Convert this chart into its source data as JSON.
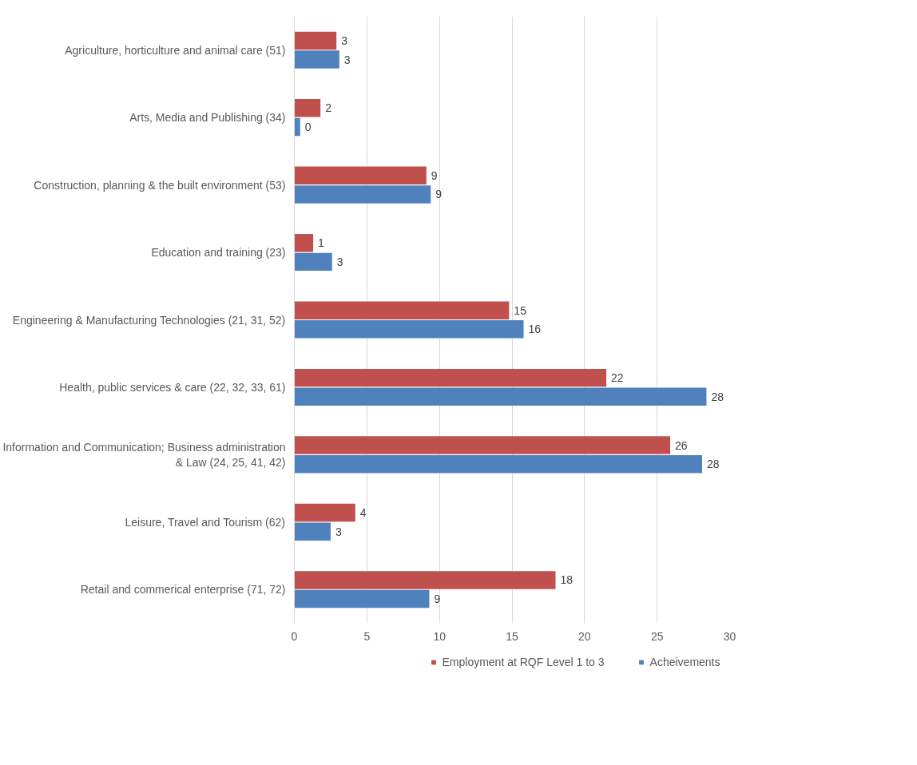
{
  "chart_data": {
    "type": "bar",
    "orientation": "horizontal",
    "categories": [
      "Agriculture, horticulture and animal care (51)",
      "Arts, Media and Publishing (34)",
      "Construction, planning & the built environment (53)",
      "Education and training (23)",
      "Engineering & Manufacturing Technologies (21, 31, 52)",
      "Health, public services & care (22, 32, 33, 61)",
      "Information and Communication; Business administration & Law (24, 25, 41, 42)",
      "Leisure, Travel and Tourism (62)",
      "Retail and commerical enterprise (71, 72)"
    ],
    "series": [
      {
        "name": "Employment at RQF Level 1 to 3",
        "color": "#c0504d",
        "values": [
          2.9,
          1.8,
          9.1,
          1.3,
          14.8,
          21.5,
          25.9,
          4.2,
          18.0
        ],
        "value_labels": [
          "3",
          "2",
          "9",
          "1",
          "15",
          "22",
          "26",
          "4",
          "18"
        ]
      },
      {
        "name": "Acheivements",
        "color": "#4f81bd",
        "values": [
          3.1,
          0.4,
          9.4,
          2.6,
          15.8,
          28.4,
          28.1,
          2.5,
          9.3
        ],
        "value_labels": [
          "3",
          "0",
          "9",
          "3",
          "16",
          "28",
          "28",
          "3",
          "9"
        ]
      }
    ],
    "xlim": [
      0,
      30
    ],
    "xticks": [
      0,
      5,
      10,
      15,
      20,
      25,
      30
    ],
    "grid": "x",
    "legend": "bottom"
  }
}
